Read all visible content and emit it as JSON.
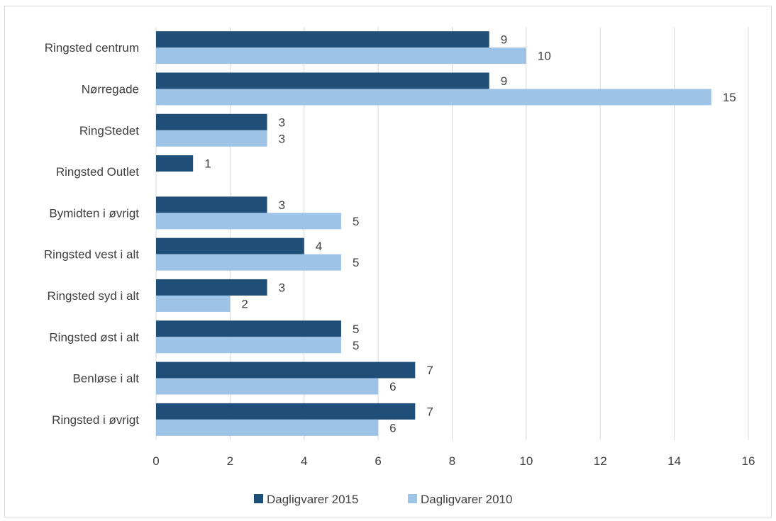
{
  "chart_data": {
    "type": "bar",
    "orientation": "horizontal",
    "categories": [
      "Ringsted centrum",
      "Nørregade",
      "RingStedet",
      "Ringsted Outlet",
      "Bymidten i øvrigt",
      "Ringsted vest i alt",
      "Ringsted syd i alt",
      "Ringsted øst i alt",
      "Benløse i alt",
      "Ringsted i øvrigt"
    ],
    "series": [
      {
        "name": "Dagligvarer 2015",
        "color": "#1f4e79",
        "values": [
          9,
          9,
          3,
          1,
          3,
          4,
          3,
          5,
          7,
          7
        ]
      },
      {
        "name": "Dagligvarer 2010",
        "color": "#9dc3e6",
        "values": [
          10,
          15,
          3,
          null,
          5,
          5,
          2,
          5,
          6,
          6
        ]
      }
    ],
    "xlim": [
      0,
      16
    ],
    "xticks": [
      "0",
      "2",
      "4",
      "6",
      "8",
      "10",
      "12",
      "14",
      "16"
    ],
    "grid": "vertical",
    "legend": "bottom",
    "title": "",
    "xlabel": "",
    "ylabel": ""
  }
}
